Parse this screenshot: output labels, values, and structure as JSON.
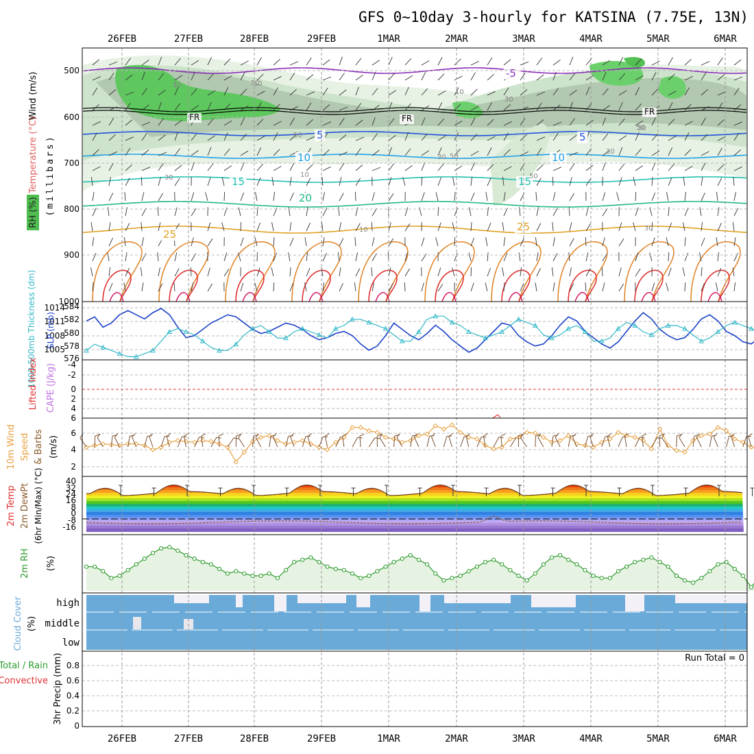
{
  "title": "GFS 0~10day 3-hourly for KATSINA (7.75E, 13N)",
  "dates": [
    "26FEB",
    "27FEB",
    "28FEB",
    "29FEB",
    "1MAR",
    "2MAR",
    "3MAR",
    "4MAR",
    "5MAR",
    "6MAR"
  ],
  "panels": {
    "upper": {
      "ylabel_wind": "Wind (m/s)",
      "ylabel_temp": "Temperature (°C)",
      "ylabel_mb": "(millibars)",
      "ylabel_rh": "RH (%)",
      "ticks": [
        "500",
        "600",
        "700",
        "800",
        "900",
        "1000"
      ],
      "contour_labels": {
        "fr": [
          "FR",
          "FR",
          "FR"
        ],
        "t_m5": [
          "-5",
          "-5"
        ],
        "t5": [
          "5",
          "5"
        ],
        "t10": [
          "10",
          "10"
        ],
        "t15": [
          "15",
          "15"
        ],
        "t20": [
          "20"
        ],
        "t25": [
          "25",
          "25"
        ],
        "rh": [
          "50",
          "30",
          "10",
          "30",
          "50",
          "30",
          "10",
          "30",
          "30",
          "50",
          "10",
          "10",
          "30",
          "50",
          "30",
          "10",
          "30",
          "50"
        ]
      }
    },
    "slp": {
      "label_thick": "1000-500mb Thickness (dm)",
      "label_slp": "SLP (mb)",
      "ticks_left": [
        "584",
        "582",
        "580",
        "578",
        "576"
      ],
      "ticks_right": [
        "1014",
        "1011",
        "1008",
        "1005"
      ]
    },
    "cape": {
      "label_li": "Lifted Index",
      "label_cape": "CAPE (J/kg)",
      "ticks": [
        "-4",
        "-2",
        "0",
        "2",
        "4",
        "6"
      ]
    },
    "wind10": {
      "label1": "10m Wind",
      "label2": "Speed",
      "label3": "& Barbs",
      "units": "(m/s)",
      "ticks": [
        "6",
        "4",
        "2"
      ]
    },
    "temp2m": {
      "label1": "2m Temp",
      "label2": "2m DewPt",
      "label3": "(6hr Min/Max) (°C)",
      "ticks": [
        "40",
        "32",
        "24",
        "16",
        "8",
        "0",
        "-8",
        "-16"
      ]
    },
    "rh2m": {
      "label": "2m RH",
      "units": "(%)"
    },
    "cloud": {
      "label": "Cloud Cover",
      "units": "(%)",
      "levels": [
        "high",
        "middle",
        "low"
      ]
    },
    "precip": {
      "label_total": "Total / Rain",
      "label_conv": "Convective",
      "label_precip": "3hr Precip (mm)",
      "run_total": "Run Total = 0",
      "ticks": [
        "0.8",
        "0.6",
        "0.4",
        "0.2",
        "0"
      ]
    }
  },
  "colors": {
    "wind10": "#e8a040",
    "slp": "#1a40c8",
    "thickness": "#30b8c8",
    "rh": "#2a9a2a",
    "cloud": "#6aaad8",
    "precip_total": "#2a9a2a",
    "precip_conv": "#e03030",
    "cape": "#c070e0",
    "li": "#e03030"
  },
  "chart_data": {
    "type": "meteogram",
    "title": "GFS 0~10day 3-hourly for KATSINA (7.75E, 13N)",
    "x_dates": [
      "26FEB",
      "27FEB",
      "28FEB",
      "29FEB",
      "1MAR",
      "2MAR",
      "3MAR",
      "4MAR",
      "5MAR",
      "6MAR"
    ],
    "slp_mb": [
      1011.5,
      1012.5,
      1010.0,
      1011.0,
      1013.0,
      1014.0,
      1013.0,
      1012.0,
      1013.5,
      1014.5,
      1013.0,
      1010.0,
      1007.5,
      1008.0,
      1009.5,
      1011.0,
      1012.0,
      1013.0,
      1012.5,
      1011.0,
      1009.5,
      1008.5,
      1009.0,
      1010.0,
      1011.0,
      1010.5,
      1009.5,
      1008.0,
      1007.0,
      1007.5,
      1008.5,
      1009.0,
      1008.0,
      1006.0,
      1004.5,
      1005.5,
      1008.0,
      1011.0,
      1009.5,
      1008.0,
      1007.0,
      1008.5,
      1010.5,
      1009.0,
      1007.0,
      1005.5,
      1004.0,
      1005.0,
      1007.0,
      1009.0,
      1011.0,
      1010.5,
      1008.0,
      1006.5,
      1005.5,
      1006.0,
      1008.0,
      1010.5,
      1012.5,
      1011.5,
      1009.0,
      1007.5,
      1006.0,
      1005.0,
      1006.5,
      1009.0,
      1011.5,
      1013.5,
      1012.0,
      1009.5,
      1008.0,
      1007.0,
      1007.5,
      1009.5,
      1012.0,
      1013.0,
      1011.5,
      1009.0,
      1008.0,
      1006.5,
      1006.0,
      1007.5,
      1010.0,
      1012.5,
      1011.0,
      1009.0,
      1008.0,
      1006.5,
      1006.5,
      1008.0,
      1010.0,
      1012.0,
      1011.0,
      1009.0,
      1008.0,
      1007.0,
      1006.5,
      1007.5,
      1009.5,
      1011.5,
      1010.5,
      1009.0,
      1007.5,
      1006.5,
      1007.0,
      1009.0,
      1011.0,
      1012.0,
      1010.5,
      1008.5,
      1007.5,
      1006.5,
      1007.0,
      1008.5,
      1010.5,
      1011.0
    ],
    "thickness_dm": [
      577.0,
      578.0,
      577.5,
      577.0,
      576.5,
      576.0,
      576.0,
      576.5,
      577.0,
      578.5,
      580.0,
      580.5,
      580.0,
      579.5,
      578.5,
      577.5,
      577.0,
      577.0,
      578.0,
      579.5,
      580.5,
      581.0,
      580.0,
      579.0,
      579.0,
      580.0,
      580.5,
      580.0,
      579.5,
      579.0,
      580.5,
      581.0,
      582.0,
      582.0,
      581.5,
      581.0,
      580.5,
      579.5,
      578.5,
      578.5,
      580.0,
      582.0,
      582.5,
      582.5,
      581.5,
      581.0,
      580.0,
      579.5,
      579.0,
      579.5,
      580.0,
      581.0,
      582.0,
      581.5,
      581.0,
      579.5,
      579.0,
      579.5,
      580.5,
      581.0,
      580.0,
      578.5,
      578.5,
      579.0,
      580.5,
      581.5,
      581.0,
      580.0,
      579.5,
      580.5,
      581.0,
      581.0,
      580.5,
      579.5,
      578.5,
      579.0,
      580.0,
      581.0,
      581.5,
      581.0,
      580.5,
      580.0,
      579.5,
      580.0,
      581.0,
      581.5,
      581.0,
      580.5,
      580.0,
      580.5,
      581.5,
      582.0,
      582.5,
      583.0,
      582.5,
      582.0,
      581.0,
      580.0,
      579.5,
      580.0,
      581.0,
      582.5,
      583.0,
      582.5,
      581.5,
      581.0,
      580.5,
      580.0,
      580.5,
      581.0,
      581.5,
      581.0,
      580.0,
      579.0,
      579.5,
      580.0
    ],
    "wind10_ms": [
      4.2,
      4.0,
      3.8,
      3.9,
      4.0,
      3.8,
      3.8,
      4.0,
      4.5,
      4.2,
      3.6,
      3.4,
      3.5,
      3.6,
      3.4,
      3.5,
      3.8,
      4.2,
      6.0,
      4.8,
      3.5,
      3.0,
      2.8,
      3.4,
      3.8,
      3.6,
      3.4,
      3.8,
      4.2,
      4.5,
      3.6,
      3.0,
      1.8,
      1.8,
      2.2,
      2.4,
      3.0,
      3.2,
      3.6,
      3.4,
      2.8,
      2.6,
      1.6,
      2.0,
      1.5,
      2.4,
      3.0,
      3.2,
      4.0,
      4.4,
      4.2,
      3.2,
      3.0,
      2.4,
      2.5,
      3.0,
      3.6,
      3.4,
      2.8,
      3.8,
      4.0,
      4.2,
      3.6,
      3.2,
      2.4,
      2.8,
      3.0,
      3.4,
      4.4,
      2.0,
      4.0,
      4.6,
      4.8,
      3.4,
      2.8,
      2.6,
      1.8,
      2.2,
      3.2,
      3.6,
      4.2,
      4.4,
      3.0,
      3.2,
      3.6,
      4.2,
      4.4,
      6.5,
      5.8,
      6.2,
      4.0,
      4.2,
      4.0,
      4.0,
      4.0,
      3.8,
      4.0,
      6.4,
      4.4,
      4.0,
      4.0,
      3.8,
      4.0,
      7.2,
      5.6,
      4.8,
      4.4,
      3.4,
      4.0,
      3.8,
      3.6,
      4.0,
      4.2,
      4.4,
      3.8,
      3.8
    ],
    "rh2m_pct": [
      52,
      52,
      56,
      62,
      60,
      55,
      50,
      45,
      40,
      36,
      35,
      38,
      42,
      45,
      48,
      50,
      54,
      58,
      56,
      58,
      60,
      60,
      58,
      62,
      55,
      48,
      46,
      44,
      48,
      52,
      54,
      55,
      58,
      62,
      60,
      56,
      52,
      48,
      45,
      42,
      46,
      50,
      58,
      64,
      62,
      60,
      56,
      52,
      48,
      46,
      50,
      55,
      60,
      64,
      58,
      50,
      44,
      42,
      46,
      50,
      55,
      60,
      62,
      62,
      56,
      52,
      48,
      46,
      44,
      48,
      52,
      60,
      64,
      66,
      62,
      56,
      50,
      48,
      54,
      60,
      70,
      60,
      50,
      45,
      44,
      48,
      52,
      54,
      56,
      56,
      54,
      50,
      46,
      42,
      44,
      48,
      52,
      56,
      58,
      60,
      62,
      56,
      48,
      44,
      42,
      46,
      52,
      56,
      60,
      62,
      64,
      66,
      68
    ]
  }
}
